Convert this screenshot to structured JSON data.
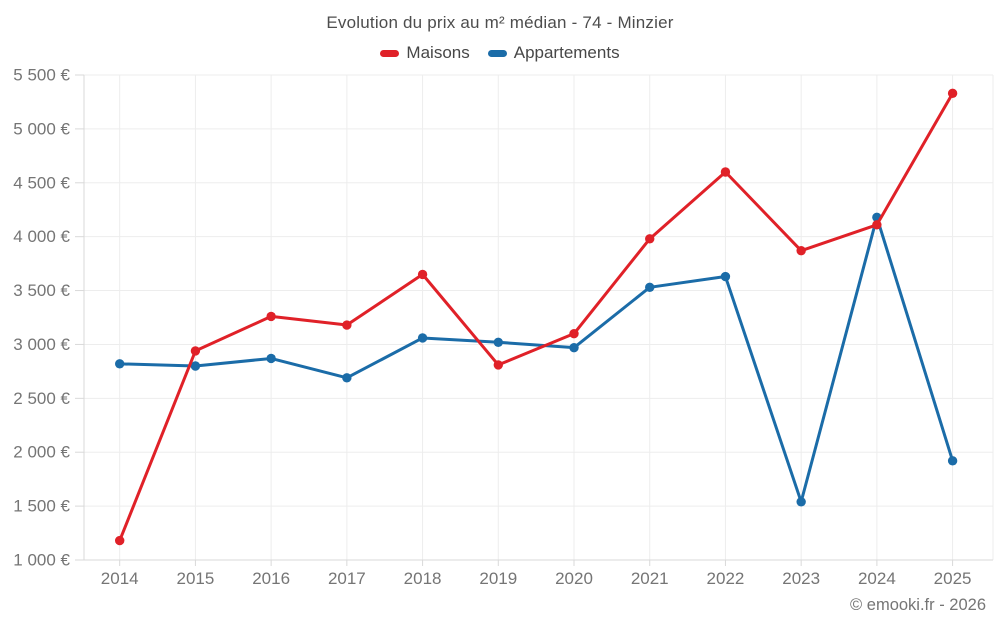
{
  "chart": {
    "title": "Evolution du prix au m² médian - 74 - Minzier",
    "footer": "© emooki.fr - 2026"
  },
  "theme": {
    "grid_color": "#ededed",
    "axis_color": "#d9d9d9",
    "tick_text_color": "#757575",
    "title_color": "#4d4d4d",
    "legend_text_color": "#474747"
  },
  "chart_data": {
    "type": "line",
    "title": "Evolution du prix au m² médian - 74 - Minzier",
    "xlabel": "",
    "ylabel": "",
    "grid": true,
    "legend_position": "top",
    "categories": [
      "2014",
      "2015",
      "2016",
      "2017",
      "2018",
      "2019",
      "2020",
      "2021",
      "2022",
      "2023",
      "2024",
      "2025"
    ],
    "series": [
      {
        "name": "Maisons",
        "color": "#e02128",
        "values": [
          1180,
          2940,
          3260,
          3180,
          3650,
          2810,
          3100,
          3980,
          4600,
          3870,
          4110,
          5330
        ]
      },
      {
        "name": "Appartements",
        "color": "#1b6ca8",
        "values": [
          2820,
          2800,
          2870,
          2690,
          3060,
          3020,
          2970,
          3530,
          3630,
          1540,
          4180,
          1920
        ]
      }
    ],
    "ylim": [
      1000,
      5500
    ],
    "ytick_step": 500,
    "ytick_labels": [
      "1 000 €",
      "1 500 €",
      "2 000 €",
      "2 500 €",
      "3 000 €",
      "3 500 €",
      "4 000 €",
      "4 500 €",
      "5 000 €",
      "5 500 €"
    ]
  }
}
